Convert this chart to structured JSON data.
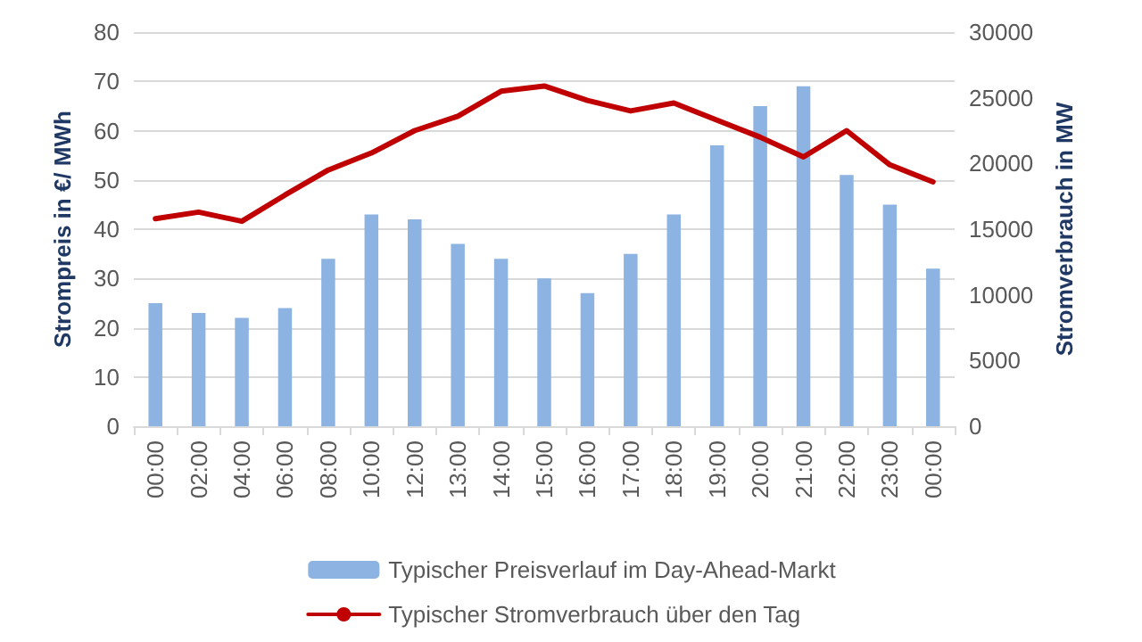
{
  "chart_data": {
    "type": "bar",
    "ylabel": "Strompreis in €/ MWh",
    "y2label": "Stromverbrauch in MW",
    "categories": [
      "00:00",
      "02:00",
      "04:00",
      "06:00",
      "08:00",
      "10:00",
      "12:00",
      "13:00",
      "14:00",
      "15:00",
      "16:00",
      "17:00",
      "18:00",
      "19:00",
      "20:00",
      "21:00",
      "22:00",
      "23:00",
      "00:00"
    ],
    "series": [
      {
        "name": "Typischer Preisverlauf im Day-Ahead-Markt",
        "color": "#8db3e2",
        "values": [
          25,
          23,
          22,
          24,
          34,
          43,
          42,
          37,
          34,
          30,
          27,
          35,
          43,
          57,
          65,
          69,
          51,
          45,
          32
        ]
      },
      {
        "name": "Typischer Stromverbrauch über den Tag",
        "type": "line",
        "axis": "y2",
        "color": "#c00000",
        "values": [
          15800,
          16300,
          15600,
          17600,
          19500,
          20800,
          22500,
          23600,
          25500,
          25900,
          24800,
          24000,
          24600,
          23300,
          22000,
          20500,
          22500,
          19900,
          18600
        ]
      }
    ],
    "ylim": [
      0,
      80
    ],
    "yticks": [
      0,
      10,
      20,
      30,
      40,
      50,
      60,
      70,
      80
    ],
    "y2lim": [
      0,
      30000
    ],
    "y2ticks": [
      0,
      5000,
      10000,
      15000,
      20000,
      25000,
      30000
    ],
    "grid": "y",
    "legend": "bottom",
    "marker": "none",
    "line_style": "solid"
  }
}
